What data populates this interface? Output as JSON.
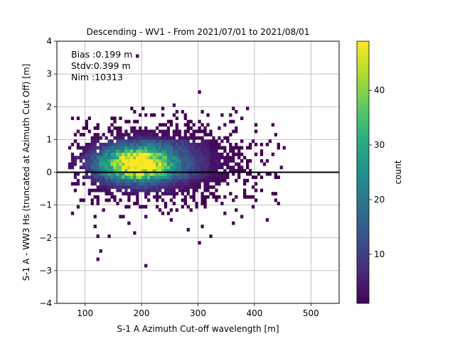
{
  "chart_data": {
    "type": "heatmap",
    "title": "Descending - WV1 - From 2021/07/01 to 2021/08/01",
    "xlabel": "S-1 A Azimuth Cut-off wavelength [m]",
    "ylabel": "S-1 A - WW3 Hs (truncated at Azimuth Cut Off) [m]",
    "xlim": [
      50,
      550
    ],
    "ylim": [
      -4,
      4
    ],
    "xticks": [
      100,
      200,
      300,
      400,
      500
    ],
    "yticks": [
      -4,
      -3,
      -2,
      -1,
      0,
      1,
      2,
      3,
      4
    ],
    "grid": true,
    "reference_line_y": 0,
    "annotations": [
      "Bias :0.199 m",
      "Stdv:0.399 m",
      "Nim :10313"
    ],
    "colorbar": {
      "label": "count",
      "ticks": [
        10,
        20,
        30,
        40
      ],
      "range": [
        1,
        49
      ],
      "colormap": "viridis"
    },
    "density_model": {
      "x_bin_width": 5,
      "y_bin_width": 0.1,
      "peak_count": 49,
      "peak_x": 190,
      "peak_y": 0.25,
      "x_support": [
        70,
        450
      ],
      "y_support": [
        -2.9,
        3.5
      ]
    }
  }
}
